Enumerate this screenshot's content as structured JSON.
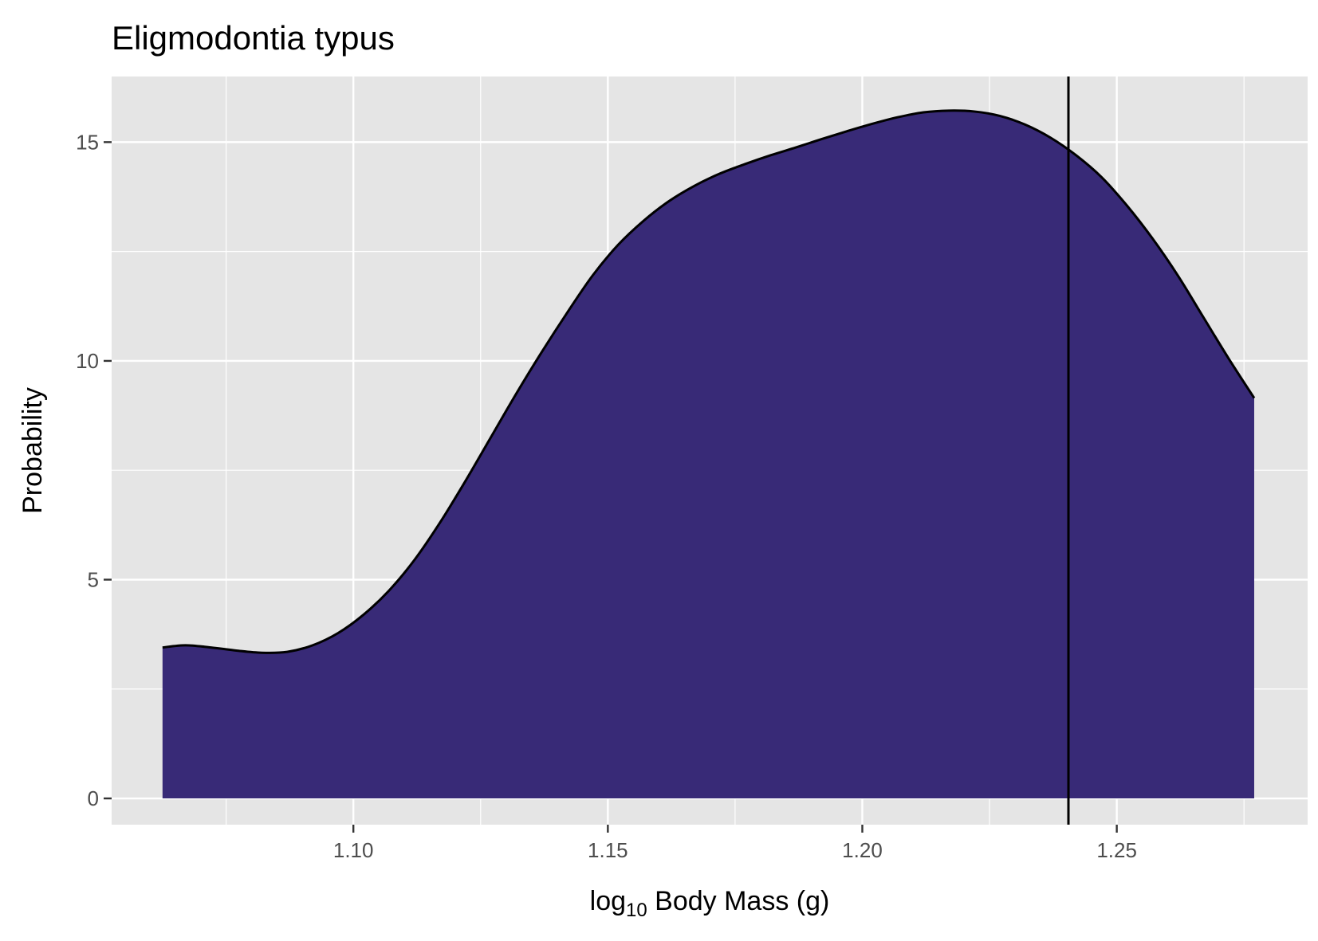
{
  "chart_data": {
    "type": "area",
    "title": "Eligmodontia typus",
    "xlabel": {
      "base": "log",
      "subscript": "10",
      "rest": " Body Mass (g)"
    },
    "ylabel": "Probability",
    "xlim": [
      1.0525,
      1.2875
    ],
    "ylim": [
      -0.6,
      16.5
    ],
    "x_ticks": [
      {
        "value": 1.1,
        "label": "1.10"
      },
      {
        "value": 1.15,
        "label": "1.15"
      },
      {
        "value": 1.2,
        "label": "1.20"
      },
      {
        "value": 1.25,
        "label": "1.25"
      }
    ],
    "y_ticks": [
      {
        "value": 0,
        "label": "0"
      },
      {
        "value": 5,
        "label": "5"
      },
      {
        "value": 10,
        "label": "10"
      },
      {
        "value": 15,
        "label": "15"
      }
    ],
    "grid": true,
    "vline_x": 1.2405,
    "series": [
      {
        "x": [
          1.0625,
          1.067,
          1.072,
          1.077,
          1.082,
          1.087,
          1.092,
          1.097,
          1.102,
          1.107,
          1.112,
          1.117,
          1.122,
          1.127,
          1.132,
          1.137,
          1.142,
          1.147,
          1.152,
          1.157,
          1.162,
          1.167,
          1.172,
          1.177,
          1.182,
          1.187,
          1.192,
          1.197,
          1.202,
          1.207,
          1.212,
          1.217,
          1.222,
          1.227,
          1.232,
          1.237,
          1.242,
          1.247,
          1.252,
          1.257,
          1.262,
          1.267,
          1.272,
          1.277
        ],
        "y": [
          3.45,
          3.5,
          3.45,
          3.38,
          3.33,
          3.35,
          3.5,
          3.78,
          4.2,
          4.75,
          5.45,
          6.3,
          7.25,
          8.25,
          9.25,
          10.2,
          11.1,
          11.95,
          12.65,
          13.2,
          13.65,
          14.0,
          14.28,
          14.5,
          14.7,
          14.88,
          15.07,
          15.25,
          15.42,
          15.57,
          15.68,
          15.72,
          15.7,
          15.6,
          15.4,
          15.1,
          14.7,
          14.2,
          13.55,
          12.8,
          11.95,
          11.0,
          10.05,
          9.15
        ]
      }
    ],
    "fill_color": "#382A77",
    "panel_color": "#E5E5E5",
    "grid_color": "#FFFFFF"
  }
}
